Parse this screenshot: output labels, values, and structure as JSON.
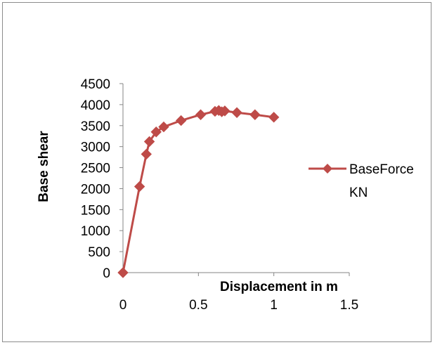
{
  "chart_data": {
    "type": "scatter",
    "title": "",
    "xlabel": "Displacement in m",
    "ylabel": "Base shear",
    "xlim": [
      0,
      1.5
    ],
    "ylim": [
      0,
      4500
    ],
    "xticks": [
      0,
      0.5,
      1,
      1.5
    ],
    "xtick_labels": [
      "0",
      "0.5",
      "1",
      "1.5"
    ],
    "yticks": [
      0,
      500,
      1000,
      1500,
      2000,
      2500,
      3000,
      3500,
      4000,
      4500
    ],
    "ytick_labels": [
      "0",
      "500",
      "1000",
      "1500",
      "2000",
      "2500",
      "3000",
      "3500",
      "4000",
      "4500"
    ],
    "grid": false,
    "legend_position": "right",
    "series": [
      {
        "name": "BaseForce KN",
        "legend_lines": [
          "BaseForce",
          "KN"
        ],
        "color": "#be4b48",
        "marker": "diamond",
        "line": true,
        "points": [
          [
            0.0,
            0
          ],
          [
            0.11,
            2050
          ],
          [
            0.155,
            2820
          ],
          [
            0.175,
            3120
          ],
          [
            0.22,
            3350
          ],
          [
            0.27,
            3470
          ],
          [
            0.385,
            3620
          ],
          [
            0.515,
            3760
          ],
          [
            0.61,
            3840
          ],
          [
            0.635,
            3860
          ],
          [
            0.655,
            3830
          ],
          [
            0.675,
            3850
          ],
          [
            0.755,
            3810
          ],
          [
            0.875,
            3760
          ],
          [
            1.0,
            3700
          ]
        ]
      }
    ]
  }
}
